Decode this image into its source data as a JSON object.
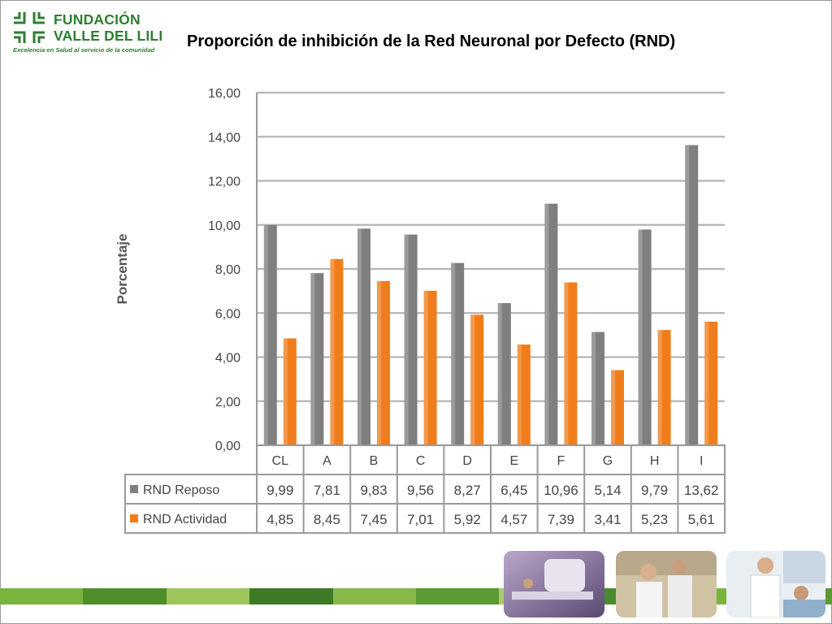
{
  "logo": {
    "line1": "FUNDACIÓN",
    "line2": "VALLE DEL LILI",
    "tagline": "Excelencia en Salud al servicio de la comunidad",
    "color": "#2f7d32"
  },
  "title": "Proporción de inhibición de la Red Neuronal por Defecto (RND)",
  "chart_data": {
    "type": "bar",
    "title": "Proporción de inhibición de la Red Neuronal por Defecto (RND)",
    "ylabel": "Porcentaje",
    "xlabel": "",
    "ylim": [
      0,
      16
    ],
    "yticks": [
      "0,00",
      "2,00",
      "4,00",
      "6,00",
      "8,00",
      "10,00",
      "12,00",
      "14,00",
      "16,00"
    ],
    "grid": true,
    "legend": "data-table",
    "categories": [
      "CL",
      "A",
      "B",
      "C",
      "D",
      "E",
      "F",
      "G",
      "H",
      "I"
    ],
    "series": [
      {
        "name": "RND Reposo",
        "color": "#7f7f7f",
        "values": [
          9.99,
          7.81,
          9.83,
          9.56,
          8.27,
          6.45,
          10.96,
          5.14,
          9.79,
          13.62
        ],
        "labels": [
          "9,99",
          "7,81",
          "9,83",
          "9,56",
          "8,27",
          "6,45",
          "10,96",
          "5,14",
          "9,79",
          "13,62"
        ]
      },
      {
        "name": "RND Actividad",
        "color": "#f07d1a",
        "values": [
          4.85,
          8.45,
          7.45,
          7.01,
          5.92,
          4.57,
          7.39,
          3.41,
          5.23,
          5.61
        ],
        "labels": [
          "4,85",
          "8,45",
          "7,45",
          "7,01",
          "5,92",
          "4,57",
          "7,39",
          "3,41",
          "5,23",
          "5,61"
        ]
      }
    ]
  },
  "bottom_bar_colors": [
    "#7ab33d",
    "#4f8f2b",
    "#9cc65b",
    "#3d7a25",
    "#86b84a",
    "#5c9a34",
    "#a7cf6a",
    "#4a8a2e",
    "#7ab33d",
    "#5c9a34"
  ],
  "photos": [
    {
      "icon": "radiotherapy-machine-photo"
    },
    {
      "icon": "lab-workers-photo"
    },
    {
      "icon": "doctor-patient-photo"
    }
  ]
}
